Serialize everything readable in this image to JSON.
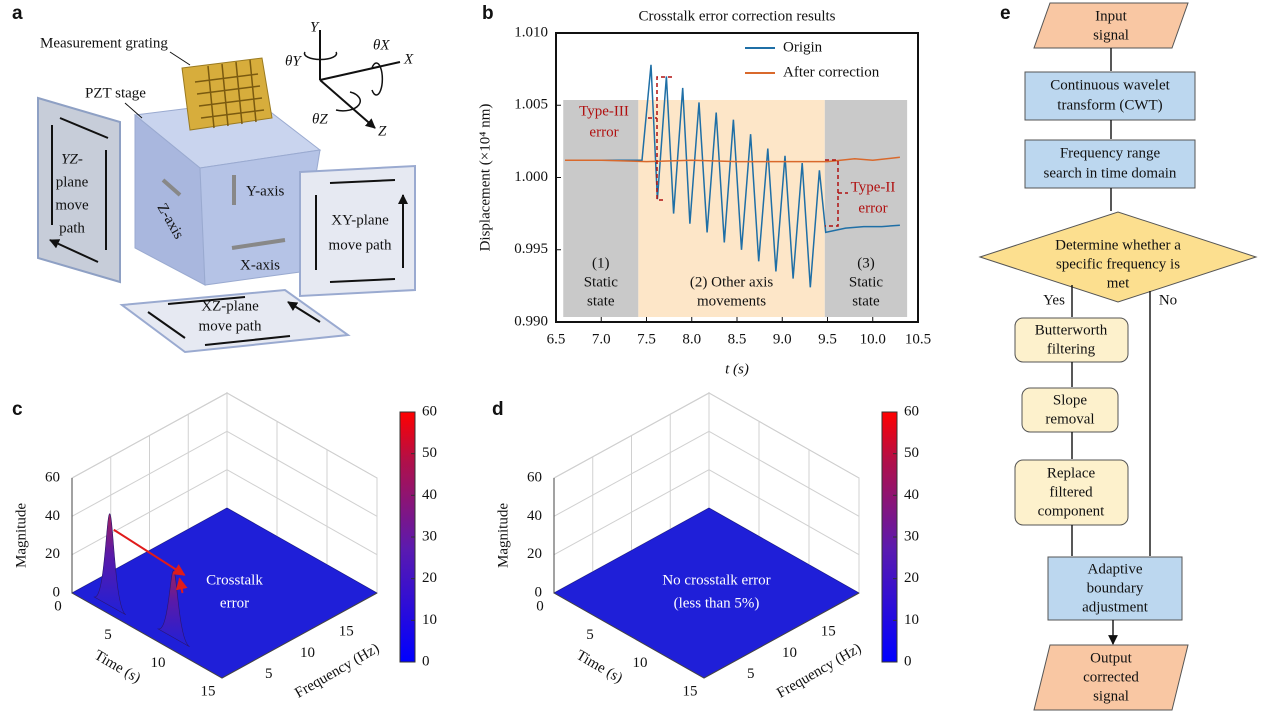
{
  "panel_labels": [
    "a",
    "b",
    "c",
    "d",
    "e"
  ],
  "diagram_a": {
    "grating": "Measurement grating",
    "stage": "PZT stage",
    "yz_path": [
      "YZ-",
      "plane",
      "move",
      "path"
    ],
    "xy_path": [
      "XY-plane",
      "move path"
    ],
    "xz_path": [
      "XZ-plane",
      "move path"
    ],
    "y_axis": "Y-axis",
    "z_axis": "Z-axis",
    "x_axis": "X-axis",
    "coords": {
      "y": "Y",
      "x": "X",
      "z": "Z",
      "theta_y": "θY",
      "theta_x": "θX",
      "theta_z": "θZ"
    }
  },
  "chart_data": [
    {
      "type": "line",
      "title": "Crosstalk error correction results",
      "xlabel": "t (s)",
      "ylabel": "Displacement (×10⁴ nm)",
      "xlim": [
        6.5,
        10.5
      ],
      "xticks": [
        6.5,
        {
          "value": 7,
          "label": "7.0"
        },
        7.5,
        {
          "value": 8,
          "label": "8.0"
        },
        8.5,
        {
          "value": 9,
          "label": "9.0"
        },
        9.5,
        {
          "value": 10,
          "label": "10.0"
        },
        10.5
      ],
      "ylim": [
        0.99,
        1.01
      ],
      "yticks": [
        {
          "value": 0.99,
          "label": "0.990"
        },
        0.995,
        {
          "value": 1,
          "label": "1.000"
        },
        1.005,
        {
          "value": 1.01,
          "label": "1.010"
        }
      ],
      "legend": "upper right",
      "regions": [
        {
          "x": [
            6.58,
            7.41
          ],
          "color": "#c9c9c9",
          "lines": [
            "(1)",
            "Static",
            "state"
          ]
        },
        {
          "x": [
            7.41,
            9.47
          ],
          "color": "#fde6c8",
          "lines": [
            "(2) Other axis",
            "movements"
          ]
        },
        {
          "x": [
            9.47,
            10.38
          ],
          "color": "#c9c9c9",
          "lines": [
            "(3)",
            "Static",
            "state"
          ]
        }
      ],
      "annotations": [
        {
          "lines": [
            "Type-III",
            "error"
          ]
        },
        {
          "lines": [
            "Type-II",
            "error"
          ]
        }
      ],
      "series": [
        {
          "name": "Origin",
          "color": "#1f6fa6",
          "x": [
            6.6,
            7.0,
            7.4,
            7.45,
            7.55,
            7.62,
            7.72,
            7.8,
            7.9,
            7.98,
            8.08,
            8.17,
            8.27,
            8.36,
            8.46,
            8.55,
            8.65,
            8.74,
            8.84,
            8.93,
            9.03,
            9.12,
            9.22,
            9.31,
            9.41,
            9.48,
            9.7,
            9.9,
            10.1,
            10.3
          ],
          "values": [
            1.0012,
            1.0012,
            1.0012,
            1.0012,
            1.0078,
            0.9985,
            1.007,
            0.9975,
            1.0062,
            0.9968,
            1.0052,
            0.9962,
            1.0045,
            0.9955,
            1.004,
            0.995,
            1.003,
            0.9942,
            1.002,
            0.9935,
            1.0015,
            0.993,
            1.001,
            0.9924,
            1.0005,
            0.9962,
            0.9965,
            0.9966,
            0.9966,
            0.9967
          ]
        },
        {
          "name": "After correction",
          "color": "#d9692c",
          "x": [
            6.6,
            7.0,
            7.5,
            8.0,
            8.5,
            9.0,
            9.5,
            9.8,
            10.0,
            10.3
          ],
          "values": [
            1.0012,
            1.0012,
            1.0011,
            1.0012,
            1.0011,
            1.0011,
            1.0011,
            1.0013,
            1.0012,
            1.0014
          ]
        }
      ]
    },
    {
      "type": "surface",
      "xlabel": "Frequency (Hz)",
      "ylabel": "Time (s)",
      "zlabel": "Magnitude",
      "xlim": [
        0,
        20
      ],
      "xticks": [
        5,
        10,
        15
      ],
      "ylim": [
        0,
        15
      ],
      "yticks": [
        0,
        5,
        10,
        15
      ],
      "zlim": [
        0,
        60
      ],
      "zticks": [
        0,
        20,
        40,
        60
      ],
      "clim": [
        0,
        60
      ],
      "cticks": [
        0,
        10,
        20,
        30,
        40,
        50,
        60
      ],
      "color": "#1f1fd8",
      "peaks": [
        {
          "x": 1,
          "y": 3,
          "z": 48
        },
        {
          "x": 1.5,
          "y": 9,
          "z": 35
        }
      ],
      "annotation": [
        "Crosstalk",
        "error"
      ]
    },
    {
      "type": "surface",
      "xlabel": "Frequency (Hz)",
      "ylabel": "Time (s)",
      "zlabel": "Magnitude",
      "xlim": [
        0,
        20
      ],
      "xticks": [
        5,
        10,
        15
      ],
      "ylim": [
        0,
        15
      ],
      "yticks": [
        0,
        5,
        10,
        15
      ],
      "zlim": [
        0,
        60
      ],
      "zticks": [
        0,
        20,
        40,
        60
      ],
      "clim": [
        0,
        60
      ],
      "cticks": [
        0,
        10,
        20,
        30,
        40,
        50,
        60
      ],
      "color": "#1f1fd8",
      "peaks": [],
      "annotation": [
        "No crosstalk error",
        "(less than 5%)"
      ]
    }
  ],
  "flowchart_e": {
    "nodes": [
      {
        "lines": [
          "Input",
          "signal"
        ]
      },
      {
        "lines": [
          "Continuous wavelet",
          "transform (CWT)"
        ]
      },
      {
        "lines": [
          "Frequency range",
          "search in time domain"
        ]
      },
      {
        "lines": [
          "Determine whether a",
          "specific frequency is",
          "met"
        ]
      },
      {
        "lines": [
          "Butterworth",
          "filtering"
        ]
      },
      {
        "lines": [
          "Slope",
          "removal"
        ]
      },
      {
        "lines": [
          "Replace",
          "filtered",
          "component"
        ]
      },
      {
        "lines": [
          "Adaptive",
          "boundary",
          "adjustment"
        ]
      },
      {
        "lines": [
          "Output",
          "corrected",
          "signal"
        ]
      }
    ],
    "edge_labels": [
      "Yes",
      "No"
    ]
  }
}
